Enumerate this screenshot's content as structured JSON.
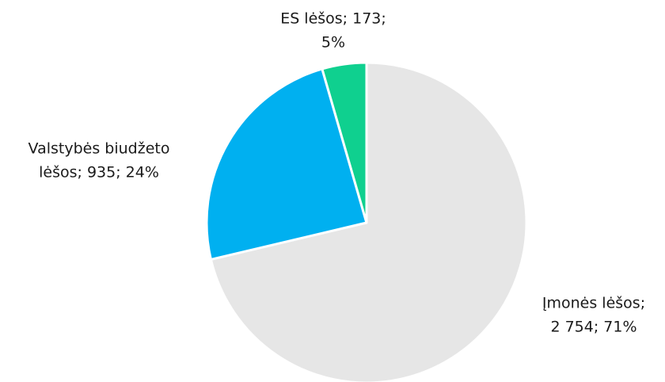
{
  "chart_data": {
    "type": "pie",
    "values": [
      2754,
      935,
      173
    ],
    "data_labels": [
      [
        "Įmonės lėšos;",
        "2 754; 71%"
      ],
      [
        "Valstybės biudžeto",
        "lėšos; 935; 24%"
      ],
      [
        "ES lėšos; 173;",
        "5%"
      ]
    ],
    "colors": [
      "#e6e6e6",
      "#00b0f0",
      "#0fd08f"
    ]
  }
}
